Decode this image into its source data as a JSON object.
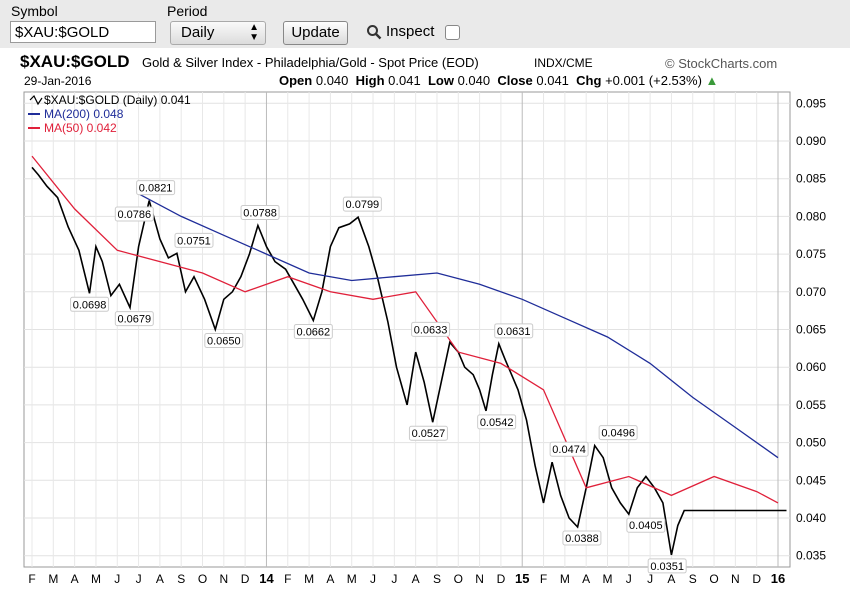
{
  "toolbar": {
    "symbol_label": "Symbol",
    "symbol_value": "$XAU:$GOLD",
    "period_label": "Period",
    "period_value": "Daily",
    "update_label": "Update",
    "inspect_label": "Inspect"
  },
  "header": {
    "symbol": "$XAU:$GOLD",
    "description": "Gold & Silver Index - Philadelphia/Gold - Spot Price (EOD)",
    "exchange": "INDX/CME",
    "logo": "© StockCharts.com",
    "date": "29-Jan-2016",
    "open_label": "Open",
    "open_value": "0.040",
    "high_label": "High",
    "high_value": "0.041",
    "low_label": "Low",
    "low_value": "0.040",
    "close_label": "Close",
    "close_value": "0.041",
    "chg_label": "Chg",
    "chg_value": "+0.001 (+2.53%)"
  },
  "chart_data": {
    "type": "line",
    "title": "$XAU:$GOLD",
    "ylim": [
      0.0335,
      0.0965
    ],
    "yticks": [
      "0.095",
      "0.090",
      "0.085",
      "0.080",
      "0.075",
      "0.070",
      "0.065",
      "0.060",
      "0.055",
      "0.050",
      "0.045",
      "0.040",
      "0.035"
    ],
    "ytick_values": [
      0.095,
      0.09,
      0.085,
      0.08,
      0.075,
      0.07,
      0.065,
      0.06,
      0.055,
      0.05,
      0.045,
      0.04,
      0.035
    ],
    "xticks": [
      "F",
      "M",
      "A",
      "M",
      "J",
      "J",
      "A",
      "S",
      "O",
      "N",
      "D",
      "14",
      "F",
      "M",
      "A",
      "M",
      "J",
      "J",
      "A",
      "S",
      "O",
      "N",
      "D",
      "15",
      "F",
      "M",
      "A",
      "M",
      "J",
      "J",
      "A",
      "S",
      "O",
      "N",
      "D",
      "16"
    ],
    "x_range": [
      "2013-02",
      "2016-01"
    ],
    "grid": true,
    "legend": [
      {
        "name": "$XAU:$GOLD (Daily) 0.041",
        "color": "#000000"
      },
      {
        "name": "MA(200) 0.048",
        "color": "#1f2d99"
      },
      {
        "name": "MA(50) 0.042",
        "color": "#e0203a"
      }
    ],
    "series": [
      {
        "name": "$XAU:$GOLD",
        "color": "#000000",
        "x": [
          0,
          0.3,
          0.7,
          1.2,
          1.7,
          2.2,
          2.7,
          3.0,
          3.3,
          3.7,
          4.1,
          4.6,
          5.0,
          5.5,
          6.0,
          6.4,
          6.8,
          7.2,
          7.6,
          8.1,
          8.6,
          9.0,
          9.4,
          9.8,
          10.2,
          10.6,
          11.0,
          11.4,
          11.9,
          12.3,
          12.7,
          13.2,
          13.6,
          14.0,
          14.4,
          14.9,
          15.3,
          15.8,
          16.2,
          16.7,
          17.1,
          17.6,
          18.0,
          18.4,
          18.8,
          19.2,
          19.6,
          20.0,
          20.3,
          20.7,
          21.0,
          21.3,
          21.6,
          21.9,
          22.2,
          22.5,
          22.8,
          23.2,
          23.6,
          24.0,
          24.4,
          24.8,
          25.2,
          25.6,
          26.0,
          26.4,
          26.8,
          27.2,
          27.6,
          28.0,
          28.4,
          28.8,
          29.2,
          29.6,
          30.0,
          30.3,
          30.6,
          30.9,
          31.2,
          31.5,
          31.8,
          32.1,
          32.4,
          32.7,
          33.0,
          33.3,
          33.6,
          33.9,
          34.2,
          34.5,
          34.8,
          35.1,
          35.4
        ],
        "values": [
          0.0865,
          0.0855,
          0.084,
          0.0825,
          0.0786,
          0.0755,
          0.0698,
          0.076,
          0.074,
          0.0695,
          0.071,
          0.0679,
          0.076,
          0.0821,
          0.077,
          0.0745,
          0.0751,
          0.07,
          0.072,
          0.069,
          0.065,
          0.069,
          0.07,
          0.072,
          0.075,
          0.0788,
          0.076,
          0.074,
          0.073,
          0.071,
          0.069,
          0.0662,
          0.07,
          0.076,
          0.0785,
          0.079,
          0.0799,
          0.076,
          0.072,
          0.066,
          0.06,
          0.055,
          0.062,
          0.058,
          0.0527,
          0.058,
          0.0633,
          0.062,
          0.06,
          0.059,
          0.057,
          0.0542,
          0.059,
          0.0631,
          0.061,
          0.059,
          0.057,
          0.053,
          0.047,
          0.042,
          0.0474,
          0.043,
          0.04,
          0.0388,
          0.044,
          0.0496,
          0.048,
          0.044,
          0.042,
          0.0405,
          0.044,
          0.0455,
          0.044,
          0.042,
          0.0351,
          0.039,
          0.041,
          0.041,
          0.041,
          0.041,
          0.041,
          0.041,
          0.041,
          0.041,
          0.041,
          0.041,
          0.041,
          0.041,
          0.041,
          0.041,
          0.041,
          0.041,
          0.041
        ]
      },
      {
        "name": "MA(200)",
        "color": "#1f2d99",
        "x": [
          5.0,
          7.0,
          9.0,
          11.0,
          13.0,
          15.0,
          17.0,
          19.0,
          21.0,
          23.0,
          25.0,
          27.0,
          29.0,
          31.0,
          33.0,
          35.0
        ],
        "values": [
          0.083,
          0.08,
          0.0775,
          0.075,
          0.0725,
          0.0715,
          0.072,
          0.0725,
          0.071,
          0.069,
          0.0665,
          0.064,
          0.0605,
          0.056,
          0.052,
          0.048
        ]
      },
      {
        "name": "MA(50)",
        "color": "#e0203a",
        "x": [
          0,
          2.0,
          4.0,
          6.0,
          8.0,
          10.0,
          12.0,
          14.0,
          16.0,
          18.0,
          20.0,
          22.0,
          24.0,
          26.0,
          28.0,
          30.0,
          32.0,
          34.0,
          35.0
        ],
        "values": [
          0.088,
          0.081,
          0.0755,
          0.074,
          0.0725,
          0.07,
          0.072,
          0.07,
          0.069,
          0.07,
          0.062,
          0.0605,
          0.057,
          0.044,
          0.0455,
          0.043,
          0.0455,
          0.0435,
          0.042
        ]
      }
    ],
    "annotations": [
      {
        "text": "0.0786",
        "x": 4.8,
        "y": 0.0786
      },
      {
        "text": "0.0698",
        "x": 2.7,
        "y": 0.0698
      },
      {
        "text": "0.0821",
        "x": 5.8,
        "y": 0.0821
      },
      {
        "text": "0.0679",
        "x": 4.8,
        "y": 0.0679
      },
      {
        "text": "0.0751",
        "x": 7.6,
        "y": 0.0751
      },
      {
        "text": "0.0650",
        "x": 9.0,
        "y": 0.065
      },
      {
        "text": "0.0788",
        "x": 10.7,
        "y": 0.0788
      },
      {
        "text": "0.0662",
        "x": 13.2,
        "y": 0.0662
      },
      {
        "text": "0.0799",
        "x": 15.5,
        "y": 0.0799
      },
      {
        "text": "0.0633",
        "x": 18.7,
        "y": 0.0633
      },
      {
        "text": "0.0527",
        "x": 18.6,
        "y": 0.0527
      },
      {
        "text": "0.0542",
        "x": 21.8,
        "y": 0.0542
      },
      {
        "text": "0.0631",
        "x": 22.6,
        "y": 0.0631
      },
      {
        "text": "0.0474",
        "x": 25.2,
        "y": 0.0474
      },
      {
        "text": "0.0388",
        "x": 25.8,
        "y": 0.0388
      },
      {
        "text": "0.0496",
        "x": 27.5,
        "y": 0.0496
      },
      {
        "text": "0.0405",
        "x": 28.8,
        "y": 0.0405
      },
      {
        "text": "0.0351",
        "x": 29.8,
        "y": 0.0351
      }
    ]
  }
}
